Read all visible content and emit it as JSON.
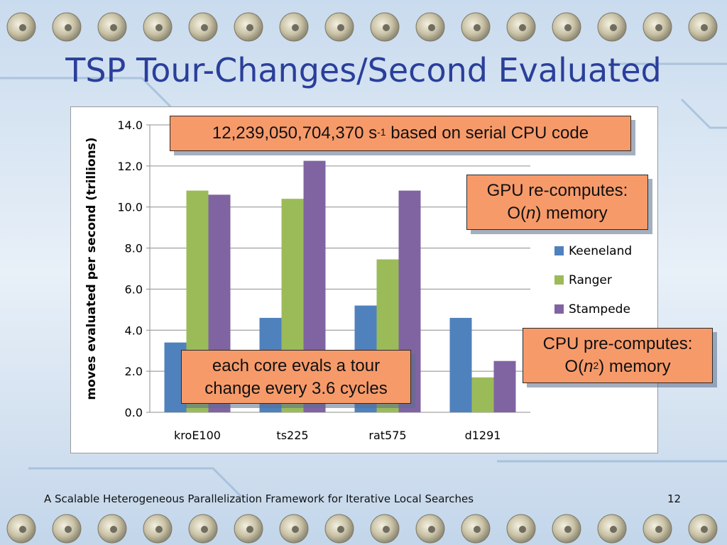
{
  "slide": {
    "title": "TSP Tour-Changes/Second Evaluated",
    "footer": "A Scalable Heterogeneous Parallelization Framework for Iterative Local Searches",
    "page_number": "12"
  },
  "callouts": {
    "serial_prefix": "12,239,050,704,370 s",
    "serial_exp": "-1",
    "serial_suffix": " based on serial CPU code",
    "gpu_line1": "GPU re-computes:",
    "gpu_line2_pre": "O(",
    "gpu_line2_var": "n",
    "gpu_line2_post": ") memory",
    "cpu_line1": "CPU pre-computes:",
    "cpu_line2_pre": "O(",
    "cpu_line2_var": "n",
    "cpu_line2_exp": "2",
    "cpu_line2_post": ") memory",
    "core_line1": "each core evals a tour",
    "core_line2": "change every 3.6 cycles"
  },
  "colors": {
    "Keeneland": "#4f81bd",
    "Ranger": "#9bbb59",
    "Stampede": "#8064a2",
    "callout_fill": "#f79a6a",
    "title": "#2a3f9a"
  },
  "chart_data": {
    "type": "bar",
    "title": "",
    "xlabel": "",
    "ylabel": "moves evaluated per second (trillions)",
    "categories": [
      "kroE100",
      "ts225",
      "rat575",
      "d1291"
    ],
    "series": [
      {
        "name": "Keeneland",
        "values": [
          3.4,
          4.6,
          5.2,
          4.6
        ]
      },
      {
        "name": "Ranger",
        "values": [
          10.8,
          10.4,
          7.45,
          1.7
        ]
      },
      {
        "name": "Stampede",
        "values": [
          10.6,
          12.25,
          10.8,
          2.5
        ]
      }
    ],
    "ylim": [
      0,
      14
    ],
    "yticks": [
      "0.0",
      "2.0",
      "4.0",
      "6.0",
      "8.0",
      "10.0",
      "12.0",
      "14.0"
    ],
    "grid": true,
    "legend": "right"
  }
}
